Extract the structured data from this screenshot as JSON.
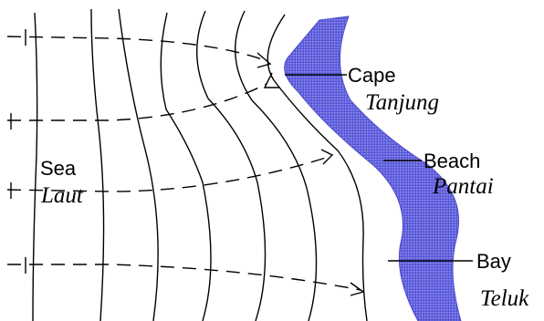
{
  "labels": {
    "cape": "Cape",
    "cape_translation": "Tanjung",
    "beach": "Beach",
    "beach_translation": "Pantai",
    "bay": "Bay",
    "bay_translation": "Teluk",
    "sea": "Sea",
    "sea_translation": "Laut"
  },
  "colors": {
    "land": "#6a6ae0",
    "lines": "#000000",
    "background": "#ffffff"
  }
}
